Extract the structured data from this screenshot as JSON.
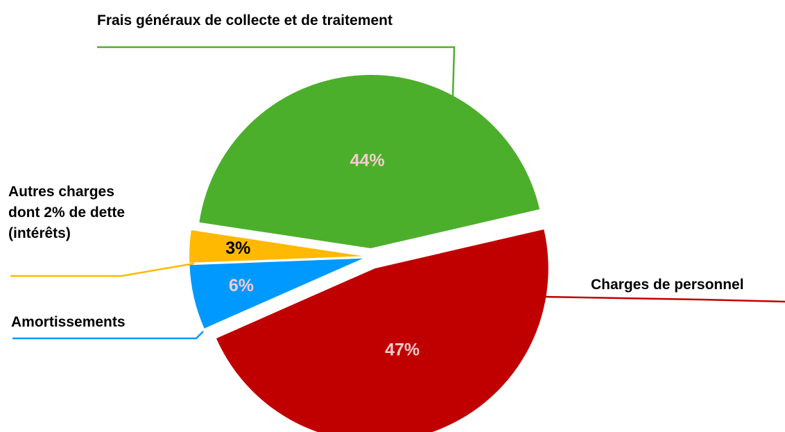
{
  "chart_data": {
    "type": "pie",
    "categories": [
      "Charges de personnel",
      "Amortissements",
      "Autres charges dont 2% de dette (intérêts)",
      "Frais généraux de collecte et de traitement"
    ],
    "values": [
      47,
      6,
      3,
      44
    ],
    "value_labels": [
      "47%",
      "6%",
      "3%",
      "44%"
    ],
    "colors": [
      "#c00000",
      "#0099ff",
      "#ffb900",
      "#4caf2c"
    ],
    "label_colors": [
      "#f4cccc",
      "#f4cccc",
      "#000000",
      "#f4cccc"
    ]
  }
}
